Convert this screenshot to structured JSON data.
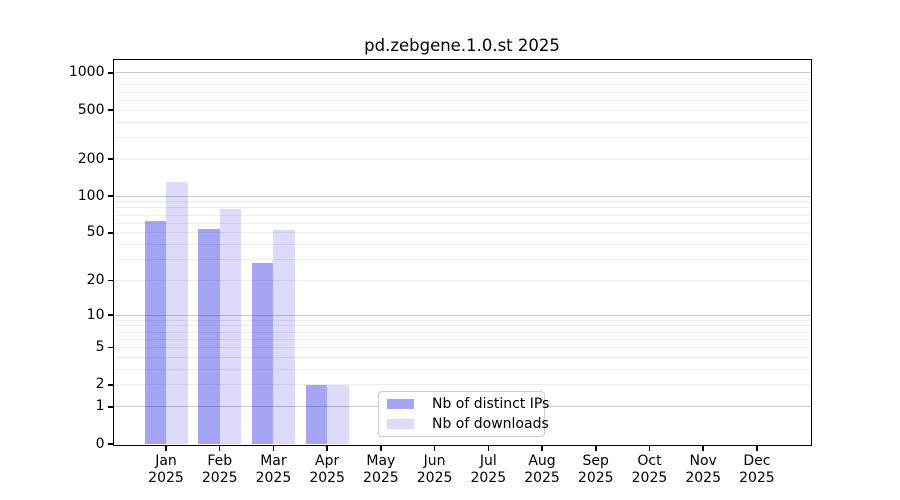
{
  "figure_title": "pd.zebgene.1.0.st 2025",
  "chart_data": {
    "type": "bar",
    "title": "pd.zebgene.1.0.st 2025",
    "x": {
      "months": [
        "Jan",
        "Feb",
        "Mar",
        "Apr",
        "May",
        "Jun",
        "Jul",
        "Aug",
        "Sep",
        "Oct",
        "Nov",
        "Dec"
      ],
      "year_label": "2025"
    },
    "series": [
      {
        "name": "Nb of distinct IPs",
        "color": "rgba(30,30,225,0.40)",
        "color_on_white": "#a5a5f3",
        "values": [
          62,
          54,
          28,
          2,
          0,
          0,
          0,
          0,
          0,
          0,
          0,
          0
        ]
      },
      {
        "name": "Nb of downloads",
        "color": "rgba(30,30,225,0.155)",
        "color_on_white": "#dcdcfa",
        "values": [
          130,
          78,
          53,
          2,
          0,
          0,
          0,
          0,
          0,
          0,
          0,
          0
        ]
      }
    ],
    "y_axis": {
      "scale": "log1p",
      "ylim": [
        0,
        1271
      ],
      "ticks": [
        1000,
        500,
        200,
        100,
        50,
        20,
        10,
        5,
        2,
        1,
        0
      ],
      "grid_major": [
        1,
        10,
        100,
        1000
      ],
      "grid_minor": [
        2,
        3,
        4,
        5,
        6,
        7,
        8,
        9,
        20,
        30,
        40,
        50,
        60,
        70,
        80,
        90,
        200,
        300,
        400,
        500,
        600,
        700,
        800,
        900
      ]
    },
    "legend": {
      "position": "lower-center"
    },
    "grid": true
  },
  "colors": {
    "background": "#ffffff",
    "grid_major": "#c8c8c8",
    "grid_minor": "#ededed",
    "spine": "#000000",
    "text": "#000000",
    "legend_border": "#cccccc"
  }
}
